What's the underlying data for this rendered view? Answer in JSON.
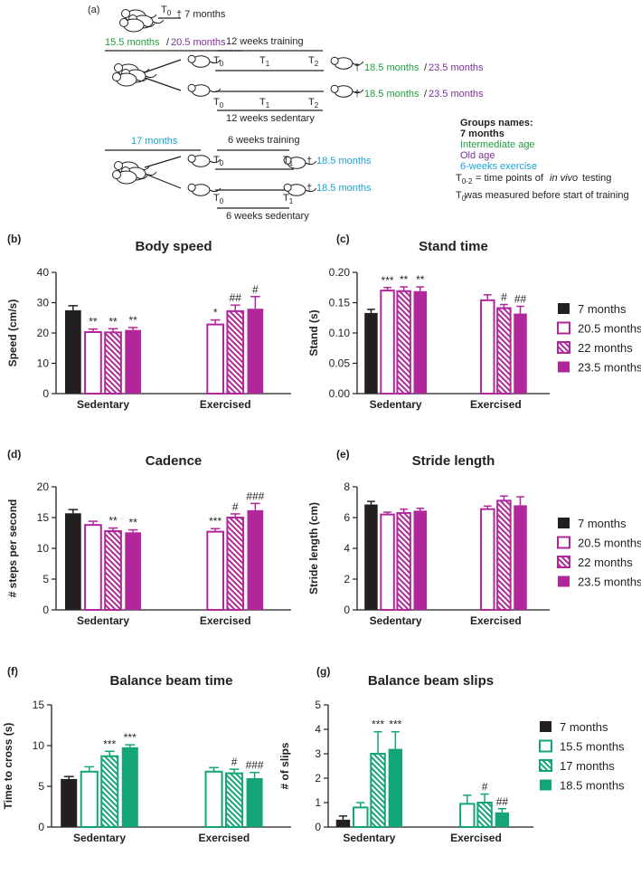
{
  "diagram": {
    "items": [
      {
        "text": "(a)"
      },
      {
        "text": "T",
        "sub": "0"
      },
      {
        "text": "† 7 months"
      },
      {
        "text": "15.5 months",
        "color": "#1f9e3c"
      },
      {
        "text": "/"
      },
      {
        "text": "20.5 months",
        "color": "#7d2f9c"
      },
      {
        "text": "12 weeks training"
      },
      {
        "text": "T",
        "sub": "0"
      },
      {
        "text": "T",
        "sub": "1"
      },
      {
        "text": "T",
        "sub": "2"
      },
      {
        "text": "†"
      },
      {
        "text": "18.5 months",
        "color": "#1f9e3c"
      },
      {
        "text": "/"
      },
      {
        "text": "23.5 months",
        "color": "#7d2f9c"
      },
      {
        "text": "T",
        "sub": "0"
      },
      {
        "text": "T",
        "sub": "1"
      },
      {
        "text": "T",
        "sub": "2"
      },
      {
        "text": "†"
      },
      {
        "text": "18.5 months",
        "color": "#1f9e3c"
      },
      {
        "text": "/"
      },
      {
        "text": "23.5 months",
        "color": "#7d2f9c"
      },
      {
        "text": "12 weeks sedentary"
      },
      {
        "text": "Groups names:",
        "bold": true
      },
      {
        "text": "7 months",
        "bold": true
      },
      {
        "text": "Intermediate age",
        "color": "#1f9e3c"
      },
      {
        "text": "Old age",
        "color": "#7d2f9c"
      },
      {
        "text": "6-weeks exercise",
        "color": "#1aa3d9"
      },
      {
        "text": "17 months",
        "color": "#1aa3d9"
      },
      {
        "text": "6 weeks training"
      },
      {
        "text": "T",
        "sub": "0"
      },
      {
        "text": "T",
        "sub": "1"
      },
      {
        "text": "†"
      },
      {
        "text": "18.5 months",
        "color": "#1aa3d9"
      },
      {
        "text": "T",
        "sub": "0"
      },
      {
        "text": "T",
        "sub": "1"
      },
      {
        "text": "†"
      },
      {
        "text": "18.5 months",
        "color": "#1aa3d9"
      },
      {
        "text": "6 weeks sedentary"
      },
      {
        "text": "T",
        "sub": "0-2"
      },
      {
        "text": "= time points of"
      },
      {
        "text": "in vivo",
        "italic": true
      },
      {
        "text": "testing"
      },
      {
        "text": "T",
        "sub": "0"
      },
      {
        "text": "was measured before start of training"
      }
    ]
  },
  "chart_data": [
    {
      "type": "bar",
      "panel": "(b)",
      "title": "Body speed",
      "ylabel": "Speed (cm/s)",
      "categories": [
        "Sedentary",
        "Exercised"
      ],
      "ylim": [
        0,
        40
      ],
      "yticks": [
        0,
        10,
        20,
        30,
        40
      ],
      "series": [
        {
          "color": "#231f20",
          "fill": "solid",
          "values": [
            27.5,
            null
          ],
          "errors": [
            1.5,
            null
          ],
          "annotations": [
            null,
            null
          ]
        },
        {
          "color": "#b0279b",
          "fill": "open",
          "values": [
            20.3,
            22.8
          ],
          "errors": [
            1.0,
            1.5
          ],
          "annotations": [
            "**",
            "*"
          ]
        },
        {
          "color": "#b0279b",
          "fill": "hatch",
          "values": [
            20.2,
            27.2
          ],
          "errors": [
            1.2,
            2.0
          ],
          "annotations": [
            "**",
            "##"
          ]
        },
        {
          "color": "#b0279b",
          "fill": "solid",
          "values": [
            21.0,
            28.0
          ],
          "errors": [
            0.8,
            4.0
          ],
          "annotations": [
            "**",
            "#"
          ]
        }
      ]
    },
    {
      "type": "bar",
      "panel": "(c)",
      "title": "Stand time",
      "ylabel": "Stand (s)",
      "categories": [
        "Sedentary",
        "Exercised"
      ],
      "ylim": [
        0,
        0.2
      ],
      "yticks": [
        {
          "value": 0,
          "label": "0.00"
        },
        {
          "value": 0.05,
          "label": "0.05"
        },
        {
          "value": 0.1,
          "label": "0.10"
        },
        {
          "value": 0.15,
          "label": "0.15"
        },
        {
          "value": 0.2,
          "label": "0.20"
        }
      ],
      "series": [
        {
          "name": "7 months",
          "color": "#231f20",
          "fill": "solid",
          "values": [
            0.133,
            null
          ],
          "errors": [
            0.006,
            null
          ],
          "annotations": [
            null,
            null
          ]
        },
        {
          "name": "20.5 months",
          "color": "#b0279b",
          "fill": "open",
          "values": [
            0.17,
            0.154
          ],
          "errors": [
            0.005,
            0.009
          ],
          "annotations": [
            "***",
            null
          ]
        },
        {
          "name": "22 months",
          "color": "#b0279b",
          "fill": "hatch",
          "values": [
            0.169,
            0.141
          ],
          "errors": [
            0.007,
            0.006
          ],
          "annotations": [
            "**",
            "#"
          ]
        },
        {
          "name": "23.5 months",
          "color": "#b0279b",
          "fill": "solid",
          "values": [
            0.169,
            0.132
          ],
          "errors": [
            0.007,
            0.012
          ],
          "annotations": [
            "**",
            "##"
          ]
        }
      ]
    },
    {
      "type": "bar",
      "panel": "(d)",
      "title": "Cadence",
      "ylabel": "# steps per second",
      "categories": [
        "Sedentary",
        "Exercised"
      ],
      "ylim": [
        0,
        20
      ],
      "yticks": [
        0,
        5,
        10,
        15,
        20
      ],
      "series": [
        {
          "color": "#231f20",
          "fill": "solid",
          "values": [
            15.7,
            null
          ],
          "errors": [
            0.6,
            null
          ],
          "annotations": [
            null,
            null
          ]
        },
        {
          "color": "#b0279b",
          "fill": "open",
          "values": [
            13.8,
            12.7
          ],
          "errors": [
            0.6,
            0.5
          ],
          "annotations": [
            null,
            "***"
          ]
        },
        {
          "color": "#b0279b",
          "fill": "hatch",
          "values": [
            12.8,
            15.0
          ],
          "errors": [
            0.5,
            0.6
          ],
          "annotations": [
            "**",
            "#"
          ]
        },
        {
          "color": "#b0279b",
          "fill": "solid",
          "values": [
            12.6,
            16.2
          ],
          "errors": [
            0.4,
            1.1
          ],
          "annotations": [
            "**",
            "###"
          ]
        }
      ]
    },
    {
      "type": "bar",
      "panel": "(e)",
      "title": "Stride length",
      "ylabel": "Stride length (cm)",
      "categories": [
        "Sedentary",
        "Exercised"
      ],
      "ylim": [
        0,
        8
      ],
      "yticks": [
        0,
        2,
        4,
        6,
        8
      ],
      "series": [
        {
          "name": "7 months",
          "color": "#231f20",
          "fill": "solid",
          "values": [
            6.85,
            null
          ],
          "errors": [
            0.2,
            null
          ]
        },
        {
          "name": "20.5 months",
          "color": "#b0279b",
          "fill": "open",
          "values": [
            6.2,
            6.55
          ],
          "errors": [
            0.15,
            0.2
          ]
        },
        {
          "name": "22 months",
          "color": "#b0279b",
          "fill": "hatch",
          "values": [
            6.3,
            7.1
          ],
          "errors": [
            0.25,
            0.3
          ]
        },
        {
          "name": "23.5 months",
          "color": "#b0279b",
          "fill": "solid",
          "values": [
            6.45,
            6.8
          ],
          "errors": [
            0.15,
            0.55
          ]
        }
      ]
    },
    {
      "type": "bar",
      "panel": "(f)",
      "title": "Balance beam time",
      "ylabel": "Time to cross (s)",
      "categories": [
        "Sedentary",
        "Exercised"
      ],
      "ylim": [
        0,
        15
      ],
      "yticks": [
        0,
        5,
        10,
        15
      ],
      "series": [
        {
          "color": "#231f20",
          "fill": "solid",
          "values": [
            5.9,
            null
          ],
          "errors": [
            0.3,
            null
          ],
          "annotations": [
            null,
            null
          ]
        },
        {
          "color": "#13a578",
          "fill": "open",
          "values": [
            6.8,
            6.8
          ],
          "errors": [
            0.6,
            0.5
          ],
          "annotations": [
            null,
            null
          ]
        },
        {
          "color": "#13a578",
          "fill": "hatch",
          "values": [
            8.7,
            6.6
          ],
          "errors": [
            0.6,
            0.5
          ],
          "annotations": [
            "***",
            "#"
          ]
        },
        {
          "color": "#13a578",
          "fill": "solid",
          "values": [
            9.8,
            6.0
          ],
          "errors": [
            0.3,
            0.7
          ],
          "annotations": [
            "***",
            "###"
          ]
        }
      ]
    },
    {
      "type": "bar",
      "panel": "(g)",
      "title": "Balance beam slips",
      "ylabel": "# of slips",
      "categories": [
        "Sedentary",
        "Exercised"
      ],
      "ylim": [
        0,
        5
      ],
      "yticks": [
        0,
        1,
        2,
        3,
        4,
        5
      ],
      "series": [
        {
          "name": "7 months",
          "color": "#231f20",
          "fill": "solid",
          "values": [
            0.3,
            null
          ],
          "errors": [
            0.15,
            null
          ],
          "annotations": [
            null,
            null
          ]
        },
        {
          "name": "15.5 months",
          "color": "#13a578",
          "fill": "open",
          "values": [
            0.8,
            0.95
          ],
          "errors": [
            0.2,
            0.35
          ],
          "annotations": [
            null,
            null
          ]
        },
        {
          "name": "17 months",
          "color": "#13a578",
          "fill": "hatch",
          "values": [
            3.0,
            1.0
          ],
          "errors": [
            0.9,
            0.35
          ],
          "annotations": [
            "***",
            "#"
          ]
        },
        {
          "name": "18.5 months",
          "color": "#13a578",
          "fill": "solid",
          "values": [
            3.2,
            0.6
          ],
          "errors": [
            0.7,
            0.15
          ],
          "annotations": [
            "***",
            "##"
          ]
        }
      ]
    }
  ]
}
